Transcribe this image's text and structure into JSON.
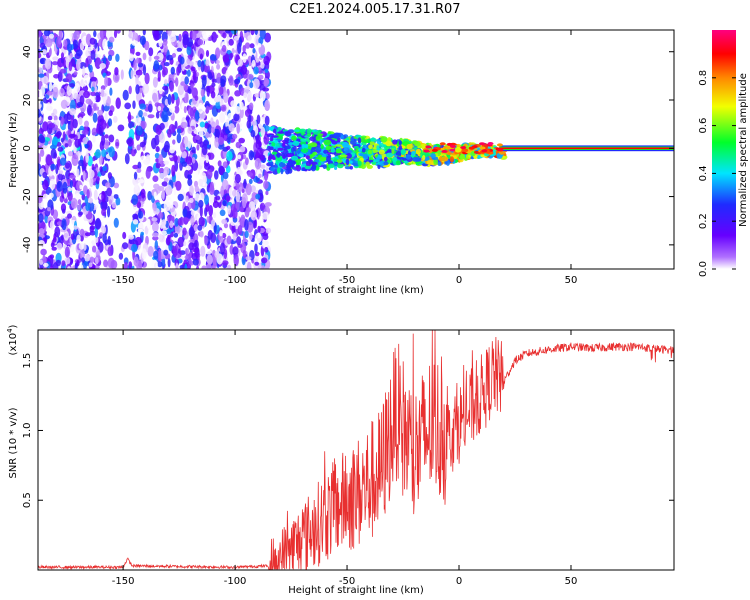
{
  "title": "C2E1.2024.005.17.31.R07",
  "chart_data": [
    {
      "type": "heatmap",
      "name": "spectrogram",
      "xlabel": "Height of straight line (km)",
      "ylabel": "Frequency (Hz)",
      "xlim": [
        -188,
        96
      ],
      "ylim": [
        -50,
        49
      ],
      "xticks": [
        -150,
        -100,
        -50,
        0,
        50
      ],
      "yticks": [
        -40,
        -20,
        0,
        20,
        40
      ],
      "colorbar": {
        "label": "Normalized spectral amplitude",
        "range": [
          0,
          1
        ],
        "ticks": [
          0.0,
          0.2,
          0.4,
          0.6,
          0.8
        ],
        "colormap": [
          "#ffffff",
          "#b070ff",
          "#6600ff",
          "#1f2bff",
          "#00e5ff",
          "#00ff2a",
          "#f2ff00",
          "#ff8800",
          "#ff0000",
          "#ff007f"
        ]
      },
      "regions": [
        {
          "x_range": [
            -188,
            -85
          ],
          "frequency_band": [
            -50,
            49
          ],
          "amplitude": "low (0.0-0.3), scattered noise"
        },
        {
          "x_range": [
            -85,
            20
          ],
          "frequency_band": [
            -8,
            7
          ],
          "amplitude": "medium (0.3-0.8), narrowing band"
        },
        {
          "x_range": [
            20,
            96
          ],
          "frequency_band": [
            -1,
            1
          ],
          "amplitude": "high (0.9-1.0), narrow line at 0 Hz"
        }
      ]
    },
    {
      "type": "line",
      "name": "snr",
      "xlabel": "Height of straight line (km)",
      "ylabel": "SNR (10 * v/v)",
      "ylabel_multiplier": "(x10",
      "ylabel_multiplier_exp": "4",
      "ylabel_multiplier_close": ")",
      "xlim": [
        -188,
        96
      ],
      "ylim": [
        0,
        1.72
      ],
      "xticks": [
        -150,
        -100,
        -50,
        0,
        50
      ],
      "yticks": [
        0.5,
        1.0,
        1.5
      ],
      "ytick_labels": [
        "0.5",
        "1.0",
        "1.5"
      ],
      "color": "#e83030",
      "key_points": [
        [
          -188,
          0.02
        ],
        [
          -150,
          0.02
        ],
        [
          -148,
          0.08
        ],
        [
          -146,
          0.03
        ],
        [
          -100,
          0.02
        ],
        [
          -85,
          0.03
        ],
        [
          -75,
          0.15
        ],
        [
          -65,
          0.3
        ],
        [
          -55,
          0.45
        ],
        [
          -45,
          0.55
        ],
        [
          -35,
          0.7
        ],
        [
          -28,
          1.15
        ],
        [
          -20,
          0.8
        ],
        [
          -12,
          1.05
        ],
        [
          -5,
          0.95
        ],
        [
          5,
          1.15
        ],
        [
          12,
          1.3
        ],
        [
          15,
          1.4
        ],
        [
          20,
          1.35
        ],
        [
          25,
          1.5
        ],
        [
          30,
          1.55
        ],
        [
          40,
          1.58
        ],
        [
          50,
          1.6
        ],
        [
          60,
          1.59
        ],
        [
          70,
          1.6
        ],
        [
          80,
          1.6
        ],
        [
          90,
          1.58
        ],
        [
          96,
          1.58
        ]
      ]
    }
  ]
}
